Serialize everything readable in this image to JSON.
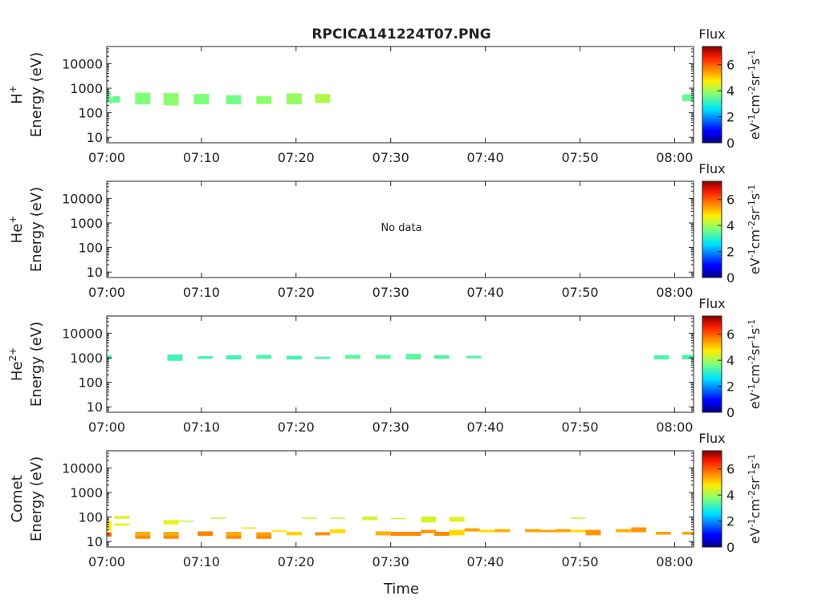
{
  "title": "RPCICA141224T07.PNG",
  "xlabel": "Time",
  "nodata_text": "No data",
  "colorbar": {
    "title": "Flux",
    "label": "eV-1cm-2sr-1s-1",
    "label_parts": [
      {
        "t": "eV",
        "sup": false
      },
      {
        "t": "-1",
        "sup": true
      },
      {
        "t": "cm",
        "sup": false
      },
      {
        "t": "-2",
        "sup": true
      },
      {
        "t": "sr",
        "sup": false
      },
      {
        "t": "-1",
        "sup": true
      },
      {
        "t": "s",
        "sup": false
      },
      {
        "t": "-1",
        "sup": true
      }
    ],
    "range": [
      0,
      7.4
    ],
    "ticks": [
      "0",
      "2",
      "4",
      "6"
    ],
    "colormap": "jet"
  },
  "chart_data": [
    {
      "type": "heatmap",
      "species": "H+",
      "ylabel_species": "H",
      "ylabel_sup": "+",
      "ylabel": "Energy (eV)",
      "yscale": "log",
      "ylim": [
        6,
        50000
      ],
      "yticks": [
        "10",
        "100",
        "1000",
        "10000"
      ],
      "xlim": [
        "07:00",
        "08:02"
      ],
      "xticks": [
        "07:00",
        "07:10",
        "07:20",
        "07:30",
        "07:40",
        "07:50",
        "08:00"
      ],
      "cells": [
        {
          "t0": "07:00",
          "t1": "07:00.4",
          "e0": 300,
          "e1": 750,
          "flux": 3.4
        },
        {
          "t0": "07:00.2",
          "t1": "07:00.6",
          "e0": 240,
          "e1": 380,
          "flux": 3.6
        },
        {
          "t0": "07:00.6",
          "t1": "07:01.4",
          "e0": 260,
          "e1": 470,
          "flux": 3.5
        },
        {
          "t0": "07:03",
          "t1": "07:04.6",
          "e0": 220,
          "e1": 650,
          "flux": 3.7
        },
        {
          "t0": "07:06",
          "t1": "07:07.6",
          "e0": 200,
          "e1": 630,
          "flux": 3.8
        },
        {
          "t0": "07:09.2",
          "t1": "07:10.8",
          "e0": 220,
          "e1": 580,
          "flux": 3.7
        },
        {
          "t0": "07:12.6",
          "t1": "07:14.2",
          "e0": 220,
          "e1": 520,
          "flux": 3.6
        },
        {
          "t0": "07:15.8",
          "t1": "07:17.4",
          "e0": 230,
          "e1": 480,
          "flux": 3.8
        },
        {
          "t0": "07:19",
          "t1": "07:20.6",
          "e0": 220,
          "e1": 620,
          "flux": 3.9
        },
        {
          "t0": "07:22",
          "t1": "07:23.6",
          "e0": 250,
          "e1": 580,
          "flux": 4.1
        },
        {
          "t0": "08:00.8",
          "t1": "08:02",
          "e0": 300,
          "e1": 560,
          "flux": 3.5
        }
      ]
    },
    {
      "type": "heatmap",
      "species": "He+",
      "ylabel_species": "He",
      "ylabel_sup": "+",
      "ylabel": "Energy (eV)",
      "yscale": "log",
      "ylim": [
        6,
        50000
      ],
      "yticks": [
        "10",
        "100",
        "1000",
        "10000"
      ],
      "xlim": [
        "07:00",
        "08:02"
      ],
      "xticks": [
        "07:00",
        "07:10",
        "07:20",
        "07:30",
        "07:40",
        "07:50",
        "08:00"
      ],
      "no_data": true,
      "cells": []
    },
    {
      "type": "heatmap",
      "species": "He2+",
      "ylabel_species": "He",
      "ylabel_sup": "2+",
      "ylabel": "Energy (eV)",
      "yscale": "log",
      "ylim": [
        6,
        50000
      ],
      "yticks": [
        "10",
        "100",
        "1000",
        "10000"
      ],
      "xlim": [
        "07:00",
        "08:02"
      ],
      "xticks": [
        "07:00",
        "07:10",
        "07:20",
        "07:30",
        "07:40",
        "07:50",
        "08:00"
      ],
      "cells": [
        {
          "t0": "07:00",
          "t1": "07:00.5",
          "e0": 850,
          "e1": 1250,
          "flux": 3.2
        },
        {
          "t0": "07:06.4",
          "t1": "07:08",
          "e0": 750,
          "e1": 1350,
          "flux": 3.2
        },
        {
          "t0": "07:09.6",
          "t1": "07:11.2",
          "e0": 900,
          "e1": 1150,
          "flux": 3.2
        },
        {
          "t0": "07:12.6",
          "t1": "07:14.2",
          "e0": 850,
          "e1": 1250,
          "flux": 3.2
        },
        {
          "t0": "07:15.8",
          "t1": "07:17.4",
          "e0": 900,
          "e1": 1300,
          "flux": 3.3
        },
        {
          "t0": "07:19",
          "t1": "07:20.6",
          "e0": 850,
          "e1": 1200,
          "flux": 3.2
        },
        {
          "t0": "07:22",
          "t1": "07:23.6",
          "e0": 900,
          "e1": 1100,
          "flux": 3.3
        },
        {
          "t0": "07:25.2",
          "t1": "07:26.8",
          "e0": 900,
          "e1": 1300,
          "flux": 3.4
        },
        {
          "t0": "07:28.4",
          "t1": "07:30",
          "e0": 900,
          "e1": 1300,
          "flux": 3.4
        },
        {
          "t0": "07:31.6",
          "t1": "07:33.2",
          "e0": 850,
          "e1": 1450,
          "flux": 3.4
        },
        {
          "t0": "07:34.6",
          "t1": "07:36.2",
          "e0": 900,
          "e1": 1250,
          "flux": 3.3
        },
        {
          "t0": "07:38",
          "t1": "07:39.6",
          "e0": 950,
          "e1": 1200,
          "flux": 3.3
        },
        {
          "t0": "07:57.8",
          "t1": "07:59.4",
          "e0": 850,
          "e1": 1250,
          "flux": 3.3
        },
        {
          "t0": "08:00.8",
          "t1": "08:02",
          "e0": 850,
          "e1": 1300,
          "flux": 3.3
        }
      ]
    },
    {
      "type": "heatmap",
      "species": "Comet",
      "ylabel_species": "Comet",
      "ylabel_sup": "",
      "ylabel": "Energy (eV)",
      "yscale": "log",
      "ylim": [
        6,
        50000
      ],
      "yticks": [
        "10",
        "100",
        "1000",
        "10000"
      ],
      "xlim": [
        "07:00",
        "08:02"
      ],
      "xticks": [
        "07:00",
        "07:10",
        "07:20",
        "07:30",
        "07:40",
        "07:50",
        "08:00"
      ],
      "cells": [
        {
          "t0": "07:00",
          "t1": "07:00.5",
          "e0": 28,
          "e1": 70,
          "flux": 4.7
        },
        {
          "t0": "07:00",
          "t1": "07:00.5",
          "e0": 16,
          "e1": 24,
          "flux": 6.0
        },
        {
          "t0": "07:00.8",
          "t1": "07:02.4",
          "e0": 85,
          "e1": 110,
          "flux": 4.5
        },
        {
          "t0": "07:00.8",
          "t1": "07:02.4",
          "e0": 45,
          "e1": 55,
          "flux": 4.6
        },
        {
          "t0": "07:03",
          "t1": "07:04.6",
          "e0": 13,
          "e1": 18,
          "flux": 5.6
        },
        {
          "t0": "07:03",
          "t1": "07:04.6",
          "e0": 18,
          "e1": 25,
          "flux": 5.3
        },
        {
          "t0": "07:06",
          "t1": "07:07.6",
          "e0": 50,
          "e1": 75,
          "flux": 4.6
        },
        {
          "t0": "07:06",
          "t1": "07:07.6",
          "e0": 13,
          "e1": 18,
          "flux": 5.6
        },
        {
          "t0": "07:06",
          "t1": "07:07.6",
          "e0": 18,
          "e1": 25,
          "flux": 5.3
        },
        {
          "t0": "07:07.6",
          "t1": "07:09.2",
          "e0": 65,
          "e1": 72,
          "flux": 4.2
        },
        {
          "t0": "07:09.6",
          "t1": "07:11.2",
          "e0": 17,
          "e1": 26,
          "flux": 5.7
        },
        {
          "t0": "07:11",
          "t1": "07:12.6",
          "e0": 88,
          "e1": 95,
          "flux": 4.3
        },
        {
          "t0": "07:12.6",
          "t1": "07:14.2",
          "e0": 13,
          "e1": 18,
          "flux": 5.6
        },
        {
          "t0": "07:12.6",
          "t1": "07:14.2",
          "e0": 18,
          "e1": 25,
          "flux": 5.3
        },
        {
          "t0": "07:14.2",
          "t1": "07:15.8",
          "e0": 34,
          "e1": 38,
          "flux": 4.8
        },
        {
          "t0": "07:15.8",
          "t1": "07:17.4",
          "e0": 13,
          "e1": 18,
          "flux": 5.6
        },
        {
          "t0": "07:15.8",
          "t1": "07:17.4",
          "e0": 18,
          "e1": 24,
          "flux": 5.4
        },
        {
          "t0": "07:17.4",
          "t1": "07:19",
          "e0": 25,
          "e1": 29,
          "flux": 4.8
        },
        {
          "t0": "07:19",
          "t1": "07:20.6",
          "e0": 18,
          "e1": 25,
          "flux": 5.0
        },
        {
          "t0": "07:20.6",
          "t1": "07:22.2",
          "e0": 88,
          "e1": 95,
          "flux": 4.3
        },
        {
          "t0": "07:22",
          "t1": "07:23.6",
          "e0": 18,
          "e1": 24,
          "flux": 5.6
        },
        {
          "t0": "07:23.6",
          "t1": "07:25.2",
          "e0": 22,
          "e1": 32,
          "flux": 4.9
        },
        {
          "t0": "07:23.6",
          "t1": "07:25.2",
          "e0": 88,
          "e1": 95,
          "flux": 4.3
        },
        {
          "t0": "07:27",
          "t1": "07:28.6",
          "e0": 75,
          "e1": 105,
          "flux": 4.4
        },
        {
          "t0": "07:28.4",
          "t1": "07:30",
          "e0": 18,
          "e1": 26,
          "flux": 5.3
        },
        {
          "t0": "07:30",
          "t1": "07:31.6",
          "e0": 17,
          "e1": 25,
          "flux": 5.6
        },
        {
          "t0": "07:30",
          "t1": "07:31.6",
          "e0": 85,
          "e1": 92,
          "flux": 4.4
        },
        {
          "t0": "07:31.6",
          "t1": "07:33.2",
          "e0": 17,
          "e1": 25,
          "flux": 5.6
        },
        {
          "t0": "07:33.2",
          "t1": "07:34.8",
          "e0": 22,
          "e1": 30,
          "flux": 5.5
        },
        {
          "t0": "07:33.2",
          "t1": "07:34.8",
          "e0": 60,
          "e1": 105,
          "flux": 4.4
        },
        {
          "t0": "07:34.6",
          "t1": "07:36.2",
          "e0": 17,
          "e1": 25,
          "flux": 5.6
        },
        {
          "t0": "07:36.2",
          "t1": "07:37.8",
          "e0": 18,
          "e1": 30,
          "flux": 4.9
        },
        {
          "t0": "07:36.2",
          "t1": "07:37.8",
          "e0": 65,
          "e1": 100,
          "flux": 4.5
        },
        {
          "t0": "07:37.8",
          "t1": "07:39.4",
          "e0": 26,
          "e1": 35,
          "flux": 5.4
        },
        {
          "t0": "07:39.4",
          "t1": "07:41",
          "e0": 24,
          "e1": 30,
          "flux": 4.9
        },
        {
          "t0": "07:41",
          "t1": "07:42.6",
          "e0": 24,
          "e1": 32,
          "flux": 5.3
        },
        {
          "t0": "07:44.2",
          "t1": "07:45.8",
          "e0": 24,
          "e1": 32,
          "flux": 5.4
        },
        {
          "t0": "07:45.8",
          "t1": "07:47.4",
          "e0": 24,
          "e1": 30,
          "flux": 5.4
        },
        {
          "t0": "07:47.4",
          "t1": "07:49",
          "e0": 24,
          "e1": 32,
          "flux": 5.4
        },
        {
          "t0": "07:49",
          "t1": "07:50.6",
          "e0": 24,
          "e1": 30,
          "flux": 4.9
        },
        {
          "t0": "07:49",
          "t1": "07:50.6",
          "e0": 88,
          "e1": 95,
          "flux": 4.3
        },
        {
          "t0": "07:50.6",
          "t1": "07:52.2",
          "e0": 18,
          "e1": 30,
          "flux": 5.5
        },
        {
          "t0": "07:53.8",
          "t1": "07:55.4",
          "e0": 24,
          "e1": 32,
          "flux": 5.3
        },
        {
          "t0": "07:55.4",
          "t1": "07:57",
          "e0": 24,
          "e1": 38,
          "flux": 5.5
        },
        {
          "t0": "07:58",
          "t1": "07:59.6",
          "e0": 19,
          "e1": 25,
          "flux": 5.4
        },
        {
          "t0": "08:00.8",
          "t1": "08:02",
          "e0": 19,
          "e1": 25,
          "flux": 5.4
        }
      ]
    }
  ]
}
